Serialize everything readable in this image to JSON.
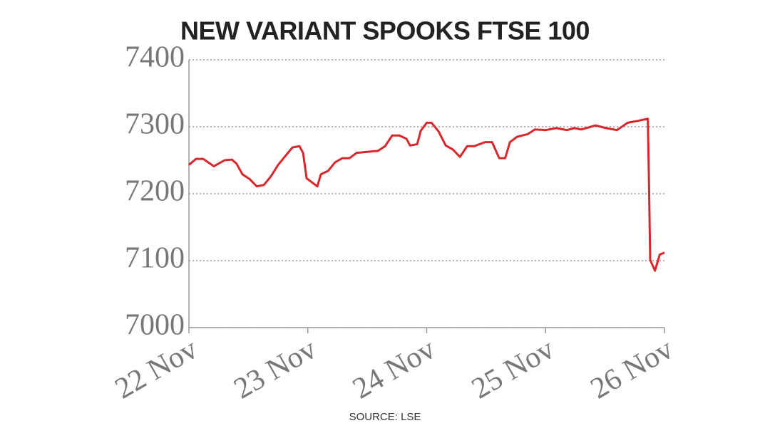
{
  "chart_data": {
    "type": "line",
    "title": "NEW VARIANT SPOOKS FTSE 100",
    "source": "SOURCE: LSE",
    "xlim": [
      0,
      4
    ],
    "xticks": [
      {
        "value": 0,
        "label": "22 Nov"
      },
      {
        "value": 1,
        "label": "23 Nov"
      },
      {
        "value": 2,
        "label": "24 Nov"
      },
      {
        "value": 3,
        "label": "25 Nov"
      },
      {
        "value": 4,
        "label": "26 Nov"
      }
    ],
    "ylim": [
      7000,
      7400
    ],
    "yticks": [
      7000,
      7100,
      7200,
      7300,
      7400
    ],
    "grid": true,
    "x": [
      0,
      0.06,
      0.12,
      0.21,
      0.3,
      0.36,
      0.4,
      0.45,
      0.51,
      0.57,
      0.63,
      0.69,
      0.75,
      0.81,
      0.87,
      0.93,
      0.96,
      0.99,
      1.05,
      1.08,
      1.11,
      1.17,
      1.23,
      1.29,
      1.35,
      1.41,
      1.47,
      1.53,
      1.59,
      1.65,
      1.71,
      1.77,
      1.83,
      1.86,
      1.92,
      1.95,
      2.0,
      2.04,
      2.1,
      2.16,
      2.22,
      2.28,
      2.34,
      2.4,
      2.49,
      2.55,
      2.61,
      2.66,
      2.7,
      2.76,
      2.85,
      2.91,
      3.0,
      3.09,
      3.18,
      3.24,
      3.3,
      3.42,
      3.51,
      3.6,
      3.69,
      3.78,
      3.86,
      3.87,
      3.88,
      3.92,
      3.96,
      4.0
    ],
    "series": [
      {
        "color": "#d9262c",
        "values": [
          7243,
          7252,
          7252,
          7241,
          7250,
          7251,
          7245,
          7229,
          7222,
          7211,
          7213,
          7226,
          7243,
          7256,
          7269,
          7271,
          7261,
          7223,
          7215,
          7211,
          7229,
          7234,
          7247,
          7253,
          7253,
          7261,
          7262,
          7263,
          7264,
          7271,
          7287,
          7287,
          7282,
          7272,
          7274,
          7294,
          7306,
          7306,
          7293,
          7272,
          7266,
          7255,
          7271,
          7271,
          7277,
          7277,
          7253,
          7253,
          7277,
          7285,
          7289,
          7296,
          7295,
          7298,
          7295,
          7298,
          7296,
          7302,
          7298,
          7295,
          7306,
          7309,
          7312,
          7213,
          7101,
          7085,
          7109,
          7112
        ]
      }
    ]
  }
}
